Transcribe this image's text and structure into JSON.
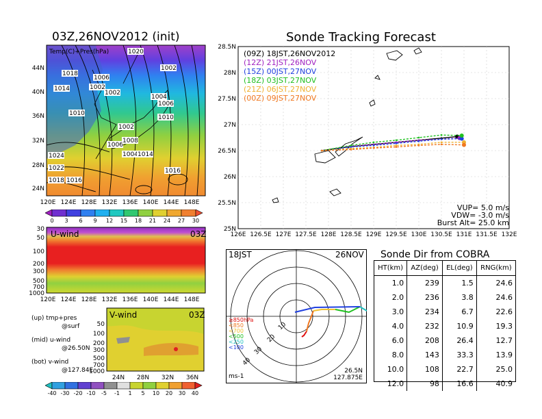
{
  "left_title": "03Z,26NOV2012 (init)",
  "map": {
    "label": "Temp(C)+Pres(hPa)",
    "lat_labels": [
      "44N",
      "40N",
      "36N",
      "32N",
      "28N",
      "24N"
    ],
    "lon_labels": [
      "120E",
      "124E",
      "128E",
      "132E",
      "136E",
      "140E",
      "144E",
      "148E"
    ],
    "pressure_labels": [
      "1020",
      "1018",
      "1014",
      "1006",
      "1002",
      "1002",
      "1004",
      "1006",
      "1010",
      "1010",
      "1002",
      "1008",
      "1006",
      "1004",
      "1014",
      "1016",
      "1024",
      "1022",
      "1018",
      "1016",
      "1002"
    ],
    "colorbar_ticks": [
      "0",
      "3",
      "6",
      "9",
      "12",
      "15",
      "18",
      "21",
      "24",
      "27",
      "30"
    ]
  },
  "uwind": {
    "label": "U-wind",
    "time": "03Z",
    "y_ticks": [
      "30",
      "50",
      "100",
      "200",
      "300",
      "500",
      "700",
      "1000"
    ],
    "x_ticks": [
      "120E",
      "124E",
      "128E",
      "132E",
      "136E",
      "140E",
      "144E",
      "148E"
    ]
  },
  "vwind": {
    "label": "V-wind",
    "time": "03Z",
    "y_ticks": [
      "50",
      "100",
      "200",
      "300",
      "500",
      "700",
      "1000"
    ],
    "x_ticks": [
      "24N",
      "28N",
      "32N",
      "36N"
    ],
    "colorbar_ticks": [
      "-40",
      "-30",
      "-20",
      "-10",
      "-5",
      "-1",
      "1",
      "5",
      "10",
      "20",
      "30",
      "40"
    ]
  },
  "legend_notes": {
    "up": "(up) tmp+pres",
    "up2": "@surf",
    "mid": "(mid) u-wind",
    "mid2": "@26.50N",
    "bot": "(bot) v-wind",
    "bot2": "@127.84E"
  },
  "track": {
    "title": "Sonde Tracking Forecast",
    "legend": [
      {
        "text": "(09Z) 18JST,26NOV2012",
        "color": "#000000"
      },
      {
        "text": "(12Z) 21JST,26NOV",
        "color": "#a020c0"
      },
      {
        "text": "(15Z) 00JST,27NOV",
        "color": "#2040e0"
      },
      {
        "text": "(18Z) 03JST,27NOV",
        "color": "#20c020"
      },
      {
        "text": "(21Z) 06JST,27NOV",
        "color": "#f0b030"
      },
      {
        "text": "(00Z) 09JST,27NOV",
        "color": "#f07820"
      }
    ],
    "vup": "VUP= 5.0 m/s",
    "vdw": "VDW= -3.0 m/s",
    "burst": "Burst Alt= 25.0 km",
    "x_ticks": [
      "126E",
      "126.5E",
      "127E",
      "127.5E",
      "128E",
      "128.5E",
      "129E",
      "129.5E",
      "130E",
      "130.5E",
      "131E",
      "131.5E",
      "132E"
    ],
    "y_ticks": [
      "28.5N",
      "28N",
      "27.5N",
      "27N",
      "26.5N",
      "26N",
      "25.5N",
      "25N"
    ]
  },
  "polar": {
    "time": "18JST",
    "date": "26NOV",
    "ring_labels": [
      "10",
      "20",
      "30",
      "40"
    ],
    "legend": [
      {
        "text": "≥850hPa",
        "color": "#e01010"
      },
      {
        "text": "<850",
        "color": "#f07820"
      },
      {
        "text": "<700",
        "color": "#f0c030"
      },
      {
        "text": "<500",
        "color": "#20c020"
      },
      {
        "text": "<250",
        "color": "#20c0c0"
      },
      {
        "text": "<100",
        "color": "#2040e0"
      }
    ],
    "pos_lat": "26.5N",
    "pos_lon": "127.875E",
    "unit": "ms-1"
  },
  "sonde_table": {
    "title": "Sonde Dir from COBRA",
    "headers": [
      "HT(km)",
      "AZ(deg)",
      "EL(deg)",
      "RNG(km)"
    ],
    "rows": [
      [
        "1.0",
        "239",
        "1.5",
        "24.6"
      ],
      [
        "2.0",
        "236",
        "3.8",
        "24.6"
      ],
      [
        "3.0",
        "234",
        "6.7",
        "22.6"
      ],
      [
        "4.0",
        "232",
        "10.9",
        "19.3"
      ],
      [
        "6.0",
        "208",
        "26.4",
        "12.7"
      ],
      [
        "8.0",
        "143",
        "33.3",
        "13.9"
      ],
      [
        "10.0",
        "108",
        "22.7",
        "25.0"
      ],
      [
        "12.0",
        "98",
        "16.6",
        "40.9"
      ]
    ]
  },
  "chart_data": {
    "type": "line",
    "title": "Sonde Tracking Forecast",
    "xlim": [
      126,
      132
    ],
    "ylim": [
      25,
      28.5
    ],
    "series": [
      {
        "name": "(09Z) 18JST,26NOV2012",
        "x": [
          127.85,
          128.5,
          129.0,
          129.5,
          130.0,
          130.5,
          130.85
        ],
        "y": [
          26.5,
          26.58,
          26.62,
          26.66,
          26.7,
          26.74,
          26.77
        ]
      },
      {
        "name": "(12Z) 21JST,26NOV",
        "x": [
          127.85,
          128.5,
          129.0,
          129.5,
          130.0,
          130.5,
          130.9
        ],
        "y": [
          26.5,
          26.58,
          26.62,
          26.66,
          26.7,
          26.72,
          26.74
        ]
      },
      {
        "name": "(15Z) 00JST,27NOV",
        "x": [
          127.85,
          128.5,
          129.0,
          129.5,
          130.0,
          130.5,
          130.95
        ],
        "y": [
          26.5,
          26.57,
          26.6,
          26.64,
          26.68,
          26.72,
          26.73
        ]
      },
      {
        "name": "(18Z) 03JST,27NOV",
        "x": [
          127.85,
          128.5,
          129.0,
          129.5,
          130.0,
          130.5,
          130.95
        ],
        "y": [
          26.5,
          26.6,
          26.66,
          26.7,
          26.75,
          26.8,
          26.79
        ]
      },
      {
        "name": "(21Z) 06JST,27NOV",
        "x": [
          127.85,
          128.5,
          129.0,
          129.5,
          130.0,
          130.5,
          131.0
        ],
        "y": [
          26.5,
          26.54,
          26.56,
          26.6,
          26.62,
          26.66,
          26.66
        ]
      },
      {
        "name": "(00Z) 09JST,27NOV",
        "x": [
          127.85,
          128.5,
          129.0,
          129.5,
          130.0,
          130.5,
          131.0
        ],
        "y": [
          26.5,
          26.52,
          26.55,
          26.57,
          26.6,
          26.62,
          26.61
        ]
      }
    ]
  }
}
